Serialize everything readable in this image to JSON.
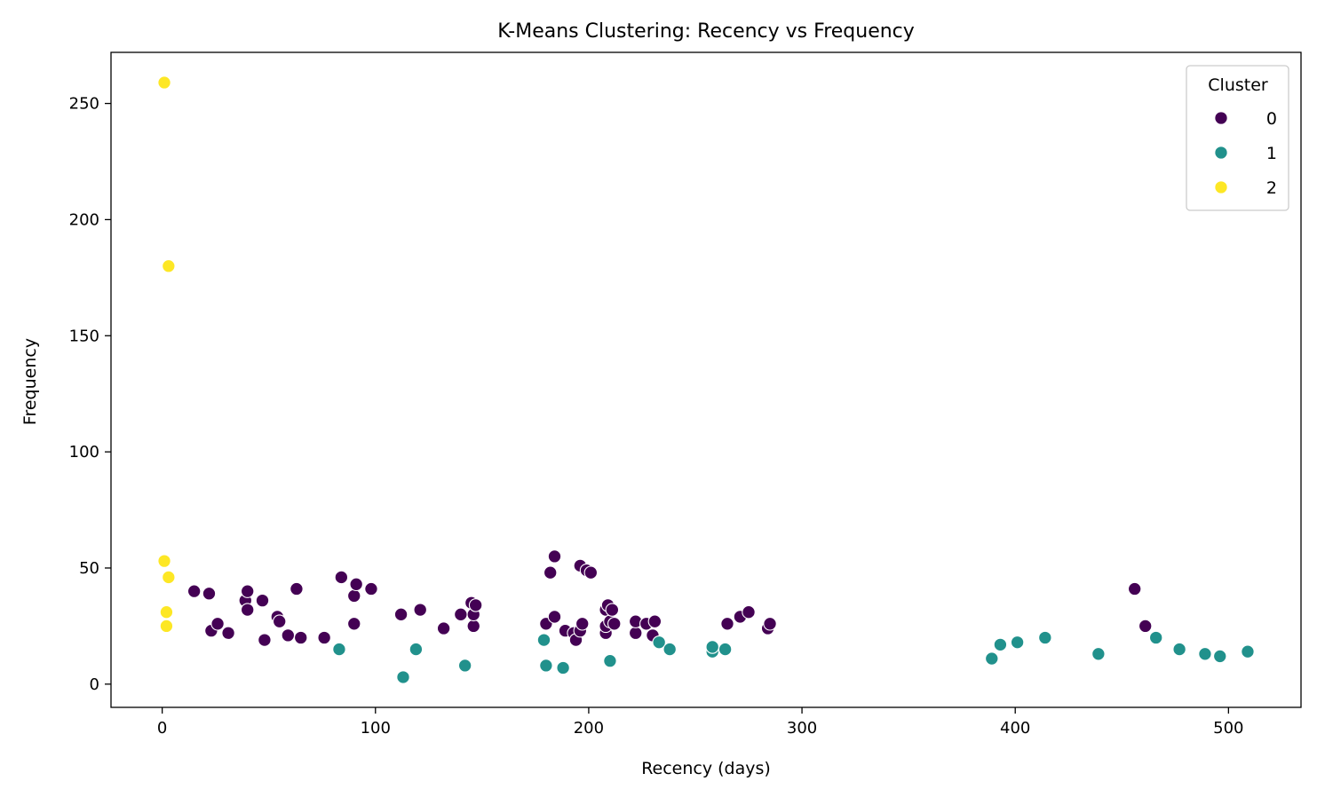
{
  "chart_data": {
    "type": "scatter",
    "title": "K-Means Clustering: Recency vs Frequency",
    "xlabel": "Recency (days)",
    "ylabel": "Frequency",
    "xlim": [
      -24,
      534
    ],
    "ylim": [
      -10,
      272
    ],
    "xticks": [
      0,
      100,
      200,
      300,
      400,
      500
    ],
    "yticks": [
      0,
      50,
      100,
      150,
      200,
      250
    ],
    "grid": false,
    "legend": {
      "title": "Cluster",
      "position": "top-right"
    },
    "series": [
      {
        "name": "0",
        "color": "#440154",
        "points": [
          [
            15,
            40
          ],
          [
            22,
            39
          ],
          [
            23,
            23
          ],
          [
            26,
            26
          ],
          [
            31,
            22
          ],
          [
            39,
            36
          ],
          [
            40,
            40
          ],
          [
            40,
            32
          ],
          [
            47,
            36
          ],
          [
            48,
            19
          ],
          [
            54,
            29
          ],
          [
            55,
            27
          ],
          [
            59,
            21
          ],
          [
            63,
            41
          ],
          [
            65,
            20
          ],
          [
            76,
            20
          ],
          [
            84,
            46
          ],
          [
            90,
            38
          ],
          [
            90,
            26
          ],
          [
            91,
            43
          ],
          [
            98,
            41
          ],
          [
            112,
            30
          ],
          [
            121,
            32
          ],
          [
            132,
            24
          ],
          [
            140,
            30
          ],
          [
            145,
            35
          ],
          [
            146,
            25
          ],
          [
            146,
            30
          ],
          [
            147,
            34
          ],
          [
            180,
            26
          ],
          [
            182,
            48
          ],
          [
            184,
            29
          ],
          [
            184,
            55
          ],
          [
            189,
            23
          ],
          [
            193,
            22
          ],
          [
            194,
            19
          ],
          [
            196,
            23
          ],
          [
            196,
            51
          ],
          [
            197,
            26
          ],
          [
            199,
            49
          ],
          [
            201,
            48
          ],
          [
            208,
            22
          ],
          [
            208,
            25
          ],
          [
            208,
            32
          ],
          [
            209,
            34
          ],
          [
            210,
            27
          ],
          [
            211,
            32
          ],
          [
            212,
            26
          ],
          [
            222,
            22
          ],
          [
            222,
            27
          ],
          [
            227,
            26
          ],
          [
            230,
            21
          ],
          [
            231,
            27
          ],
          [
            265,
            26
          ],
          [
            271,
            29
          ],
          [
            275,
            31
          ],
          [
            284,
            24
          ],
          [
            285,
            26
          ],
          [
            456,
            41
          ],
          [
            461,
            25
          ]
        ]
      },
      {
        "name": "1",
        "color": "#21918c",
        "points": [
          [
            83,
            15
          ],
          [
            113,
            3
          ],
          [
            119,
            15
          ],
          [
            142,
            8
          ],
          [
            179,
            19
          ],
          [
            180,
            8
          ],
          [
            188,
            7
          ],
          [
            210,
            10
          ],
          [
            233,
            18
          ],
          [
            238,
            15
          ],
          [
            258,
            14
          ],
          [
            258,
            16
          ],
          [
            264,
            15
          ],
          [
            389,
            11
          ],
          [
            393,
            17
          ],
          [
            401,
            18
          ],
          [
            414,
            20
          ],
          [
            439,
            13
          ],
          [
            466,
            20
          ],
          [
            477,
            15
          ],
          [
            489,
            13
          ],
          [
            496,
            12
          ],
          [
            509,
            14
          ]
        ]
      },
      {
        "name": "2",
        "color": "#fde725",
        "points": [
          [
            1,
            259
          ],
          [
            3,
            180
          ],
          [
            1,
            53
          ],
          [
            3,
            46
          ],
          [
            2,
            31
          ],
          [
            2,
            25
          ]
        ]
      }
    ]
  }
}
